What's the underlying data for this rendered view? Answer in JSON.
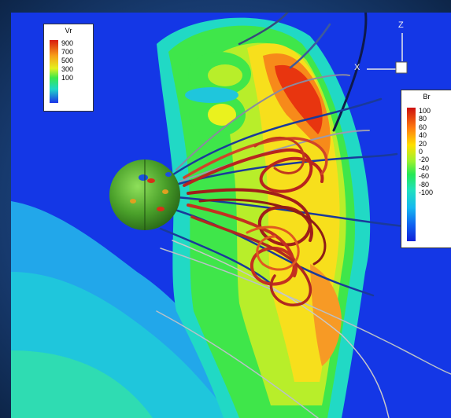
{
  "legend_vr": {
    "title": "Vr",
    "ticks": [
      "900",
      "700",
      "500",
      "300",
      "100"
    ]
  },
  "legend_br": {
    "title": "Br",
    "ticks": [
      "100",
      "80",
      "60",
      "40",
      "20",
      "0",
      "-20",
      "-40",
      "-60",
      "-80",
      "-100"
    ]
  },
  "axes": {
    "z_label": "Z",
    "x_label": "X"
  },
  "colors": {
    "background_field": "#1437e6",
    "frame": "#173a6e",
    "sun_sphere": "#4aa02a",
    "flux_rope": "#b8241e"
  }
}
